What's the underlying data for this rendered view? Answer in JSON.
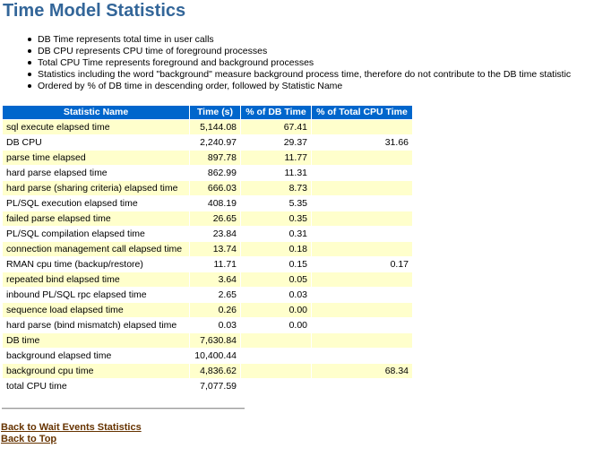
{
  "page": {
    "title": "Time Model Statistics"
  },
  "notes": [
    "DB Time represents total time in user calls",
    "DB CPU represents CPU time of foreground processes",
    "Total CPU Time represents foreground and background processes",
    "Statistics including the word \"background\" measure background process time, therefore do not contribute to the DB time statistic",
    "Ordered by % of DB time in descending order, followed by Statistic Name"
  ],
  "table": {
    "headers": {
      "name": "Statistic Name",
      "time": "Time (s)",
      "pct_db": "% of DB Time",
      "pct_cpu": "% of Total CPU Time"
    },
    "rows": [
      {
        "name": "sql execute elapsed time",
        "time": "5,144.08",
        "pct_db": "67.41",
        "pct_cpu": ""
      },
      {
        "name": "DB CPU",
        "time": "2,240.97",
        "pct_db": "29.37",
        "pct_cpu": "31.66"
      },
      {
        "name": "parse time elapsed",
        "time": "897.78",
        "pct_db": "11.77",
        "pct_cpu": ""
      },
      {
        "name": "hard parse elapsed time",
        "time": "862.99",
        "pct_db": "11.31",
        "pct_cpu": ""
      },
      {
        "name": "hard parse (sharing criteria) elapsed time",
        "time": "666.03",
        "pct_db": "8.73",
        "pct_cpu": ""
      },
      {
        "name": "PL/SQL execution elapsed time",
        "time": "408.19",
        "pct_db": "5.35",
        "pct_cpu": ""
      },
      {
        "name": "failed parse elapsed time",
        "time": "26.65",
        "pct_db": "0.35",
        "pct_cpu": ""
      },
      {
        "name": "PL/SQL compilation elapsed time",
        "time": "23.84",
        "pct_db": "0.31",
        "pct_cpu": ""
      },
      {
        "name": "connection management call elapsed time",
        "time": "13.74",
        "pct_db": "0.18",
        "pct_cpu": ""
      },
      {
        "name": "RMAN cpu time (backup/restore)",
        "time": "11.71",
        "pct_db": "0.15",
        "pct_cpu": "0.17"
      },
      {
        "name": "repeated bind elapsed time",
        "time": "3.64",
        "pct_db": "0.05",
        "pct_cpu": ""
      },
      {
        "name": "inbound PL/SQL rpc elapsed time",
        "time": "2.65",
        "pct_db": "0.03",
        "pct_cpu": ""
      },
      {
        "name": "sequence load elapsed time",
        "time": "0.26",
        "pct_db": "0.00",
        "pct_cpu": ""
      },
      {
        "name": "hard parse (bind mismatch) elapsed time",
        "time": "0.03",
        "pct_db": "0.00",
        "pct_cpu": ""
      },
      {
        "name": "DB time",
        "time": "7,630.84",
        "pct_db": "",
        "pct_cpu": ""
      },
      {
        "name": "background elapsed time",
        "time": "10,400.44",
        "pct_db": "",
        "pct_cpu": ""
      },
      {
        "name": "background cpu time",
        "time": "4,836.62",
        "pct_db": "",
        "pct_cpu": "68.34"
      },
      {
        "name": "total CPU time",
        "time": "7,077.59",
        "pct_db": "",
        "pct_cpu": ""
      }
    ]
  },
  "links": {
    "wait_events": "Back to Wait Events Statistics",
    "top": "Back to Top"
  },
  "colors": {
    "title": "#336699",
    "header_bg": "#0066cc",
    "header_text": "#ffffff",
    "row_alt": "#ffffcc",
    "row_plain": "#ffffff",
    "link": "#663300"
  }
}
